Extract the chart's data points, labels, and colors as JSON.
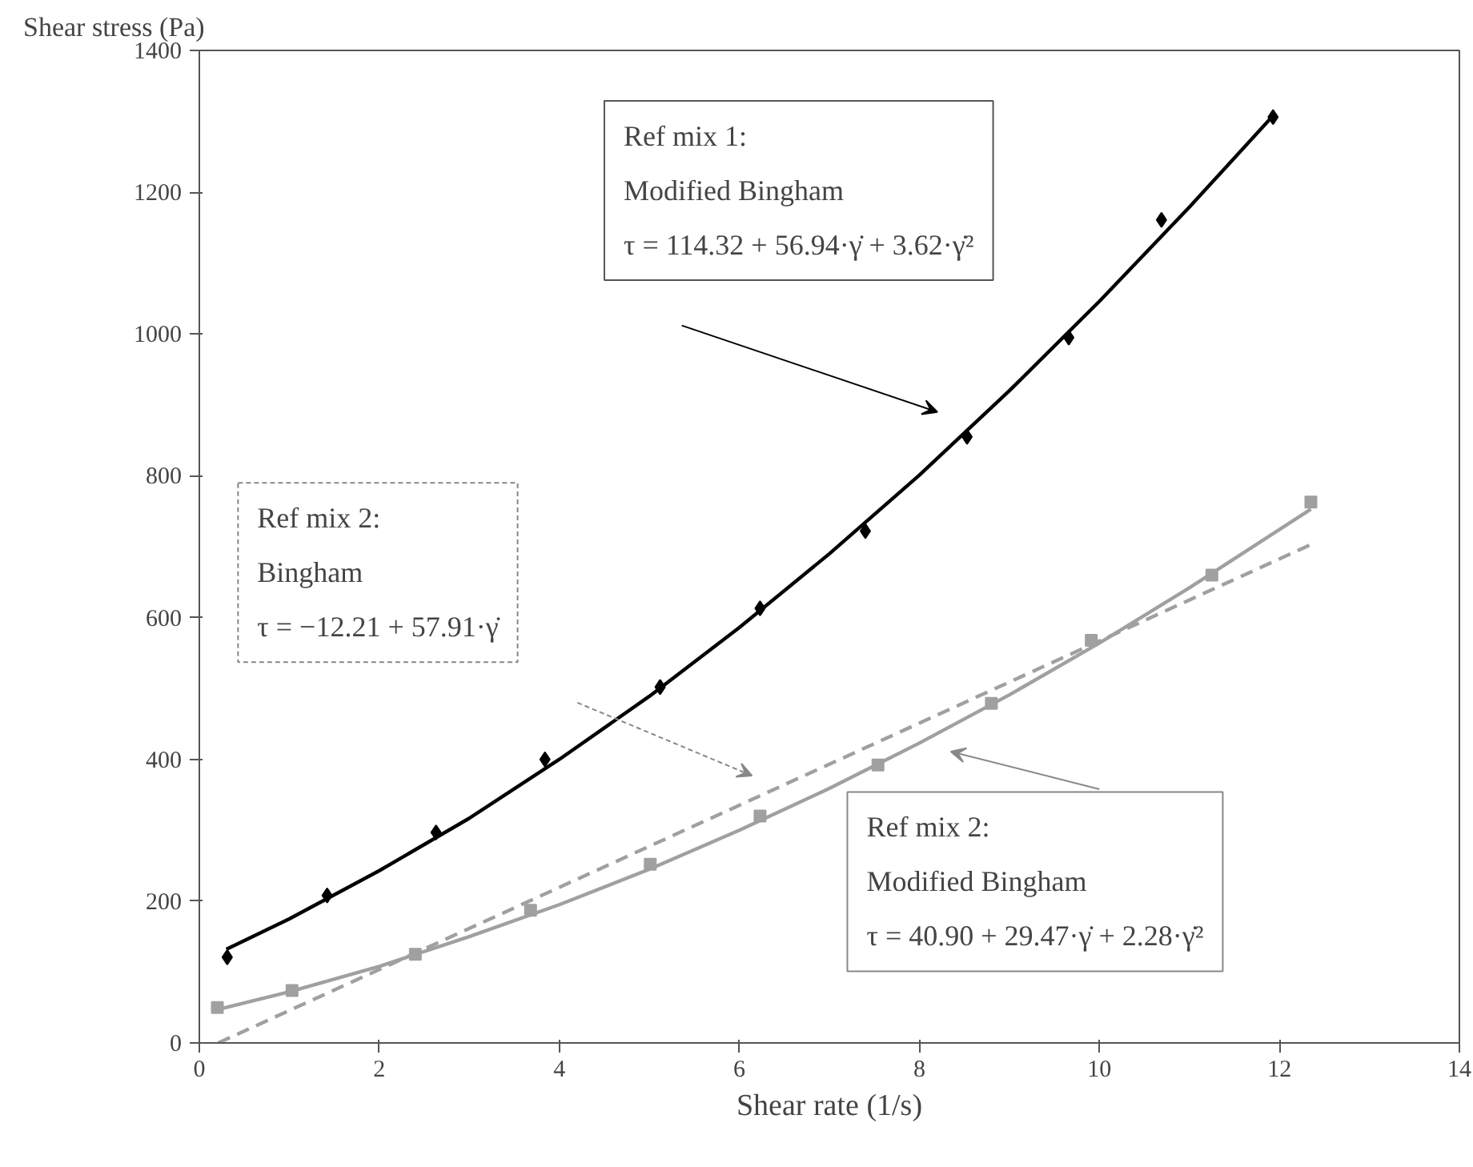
{
  "chart_data": {
    "type": "scatter",
    "xlabel": "Shear rate (1/s)",
    "ylabel": "Shear stress (Pa)",
    "xlim": [
      0,
      14
    ],
    "xticks": [
      0,
      2,
      4,
      6,
      8,
      10,
      12,
      14
    ],
    "ylim": [
      0,
      1400
    ],
    "yticks": [
      0,
      200,
      400,
      600,
      800,
      1000,
      1200,
      1400
    ],
    "grid": false,
    "series": [
      {
        "marker": "diamond",
        "color": "#000000",
        "x": [
          0.31,
          1.42,
          2.63,
          3.84,
          5.12,
          6.23,
          7.4,
          8.53,
          9.66,
          10.69,
          11.93
        ],
        "values": [
          121,
          208,
          297,
          400,
          502,
          613,
          722,
          855,
          995,
          1161,
          1306
        ]
      },
      {
        "type": "line",
        "marker": "none",
        "line_style": "solid",
        "color": "#000000",
        "x": [
          0.3,
          1,
          2,
          3,
          4,
          5,
          6,
          7,
          8,
          9,
          10,
          11,
          11.93
        ],
        "values": [
          132,
          175,
          243,
          317,
          400,
          489,
          586,
          690,
          801,
          920,
          1046,
          1179,
          1308
        ]
      },
      {
        "marker": "square",
        "color": "#a0a0a0",
        "x": [
          0.2,
          1.03,
          2.4,
          3.68,
          5.01,
          6.23,
          7.54,
          8.8,
          9.91,
          11.25,
          12.35
        ],
        "values": [
          50,
          74,
          125,
          187,
          252,
          320,
          392,
          479,
          568,
          660,
          763
        ]
      },
      {
        "type": "line",
        "marker": "none",
        "line_style": "solid",
        "color": "#a0a0a0",
        "x": [
          0.2,
          1,
          2,
          3,
          4,
          5,
          6,
          7,
          8,
          9,
          10,
          11,
          12.35
        ],
        "values": [
          47,
          72,
          108,
          150,
          195,
          245,
          300,
          359,
          423,
          491,
          564,
          642,
          753
        ]
      },
      {
        "type": "line",
        "marker": "none",
        "line_style": "dashed",
        "color": "#a0a0a0",
        "x": [
          0.21,
          12.35
        ],
        "values": [
          0,
          703
        ]
      }
    ],
    "annotations": [
      "Ref mix 1:\nModified Bingham\nτ = 114.32 + 56.94·γ̇ + 3.62·γ̇²",
      "Ref mix 2:\nBingham\nτ = −12.21 + 57.91·γ̇",
      "Ref mix 2:\nModified Bingham\nτ = 40.90 + 29.47·γ̇ + 2.28·γ̇²"
    ]
  }
}
